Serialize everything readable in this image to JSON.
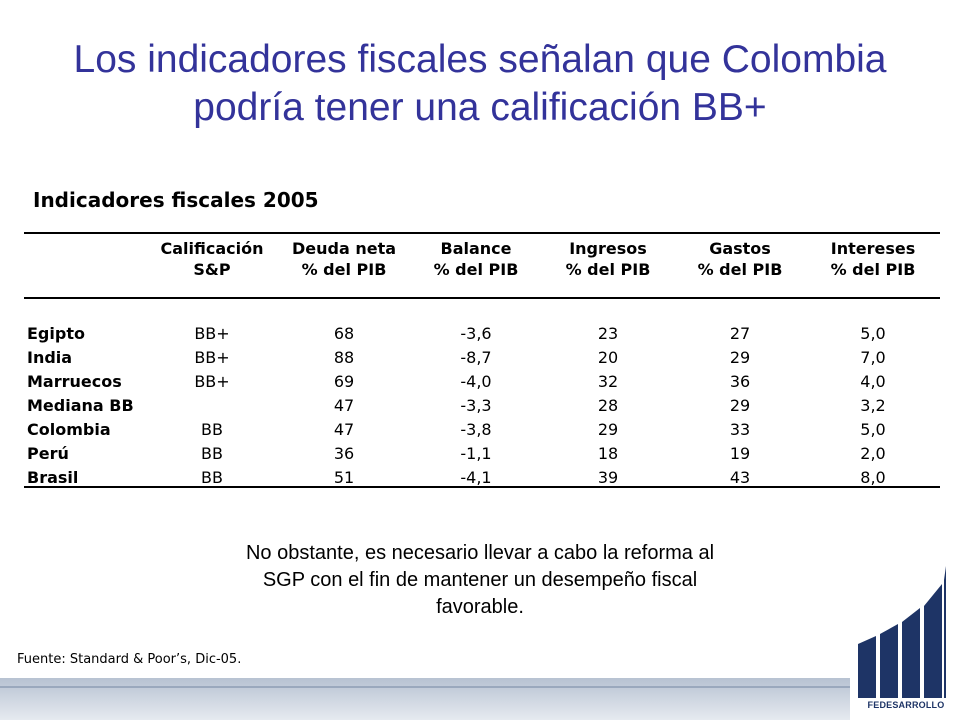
{
  "title": {
    "line1": "Los indicadores fiscales señalan que Colombia",
    "line2": "podría tener una calificación BB+"
  },
  "table": {
    "caption": "Indicadores fiscales 2005",
    "headers": [
      {
        "line1": "",
        "line2": ""
      },
      {
        "line1": "Calificación",
        "line2": "S&P"
      },
      {
        "line1": "Deuda neta",
        "line2": "% del PIB"
      },
      {
        "line1": "Balance",
        "line2": "% del PIB"
      },
      {
        "line1": "Ingresos",
        "line2": "% del PIB"
      },
      {
        "line1": "Gastos",
        "line2": "% del PIB"
      },
      {
        "line1": "Intereses",
        "line2": "% del PIB"
      }
    ],
    "rows": [
      [
        "Egipto",
        "BB+",
        "68",
        "-3,6",
        "23",
        "27",
        "5,0"
      ],
      [
        "India",
        "BB+",
        "88",
        "-8,7",
        "20",
        "29",
        "7,0"
      ],
      [
        "Marruecos",
        "BB+",
        "69",
        "-4,0",
        "32",
        "36",
        "4,0"
      ],
      [
        "Mediana BB",
        "",
        "47",
        "-3,3",
        "28",
        "29",
        "3,2"
      ],
      [
        "Colombia",
        "BB",
        "47",
        "-3,8",
        "29",
        "33",
        "5,0"
      ],
      [
        "Perú",
        "BB",
        "36",
        "-1,1",
        "18",
        "19",
        "2,0"
      ],
      [
        "Brasil",
        "BB",
        "51",
        "-4,1",
        "39",
        "43",
        "8,0"
      ]
    ]
  },
  "note": {
    "line1": "No obstante, es necesario llevar a cabo la reforma al",
    "line2": "SGP con el fin de mantener un desempeño fiscal",
    "line3": "favorable."
  },
  "source": "Fuente: Standard & Poor’s, Dic-05.",
  "logo": {
    "text": "FEDESARROLLO",
    "icon": "fedesarrollo-logo-icon"
  },
  "colors": {
    "title": "#33339a",
    "logo": "#1e3466",
    "band": "#b7c2d2"
  }
}
